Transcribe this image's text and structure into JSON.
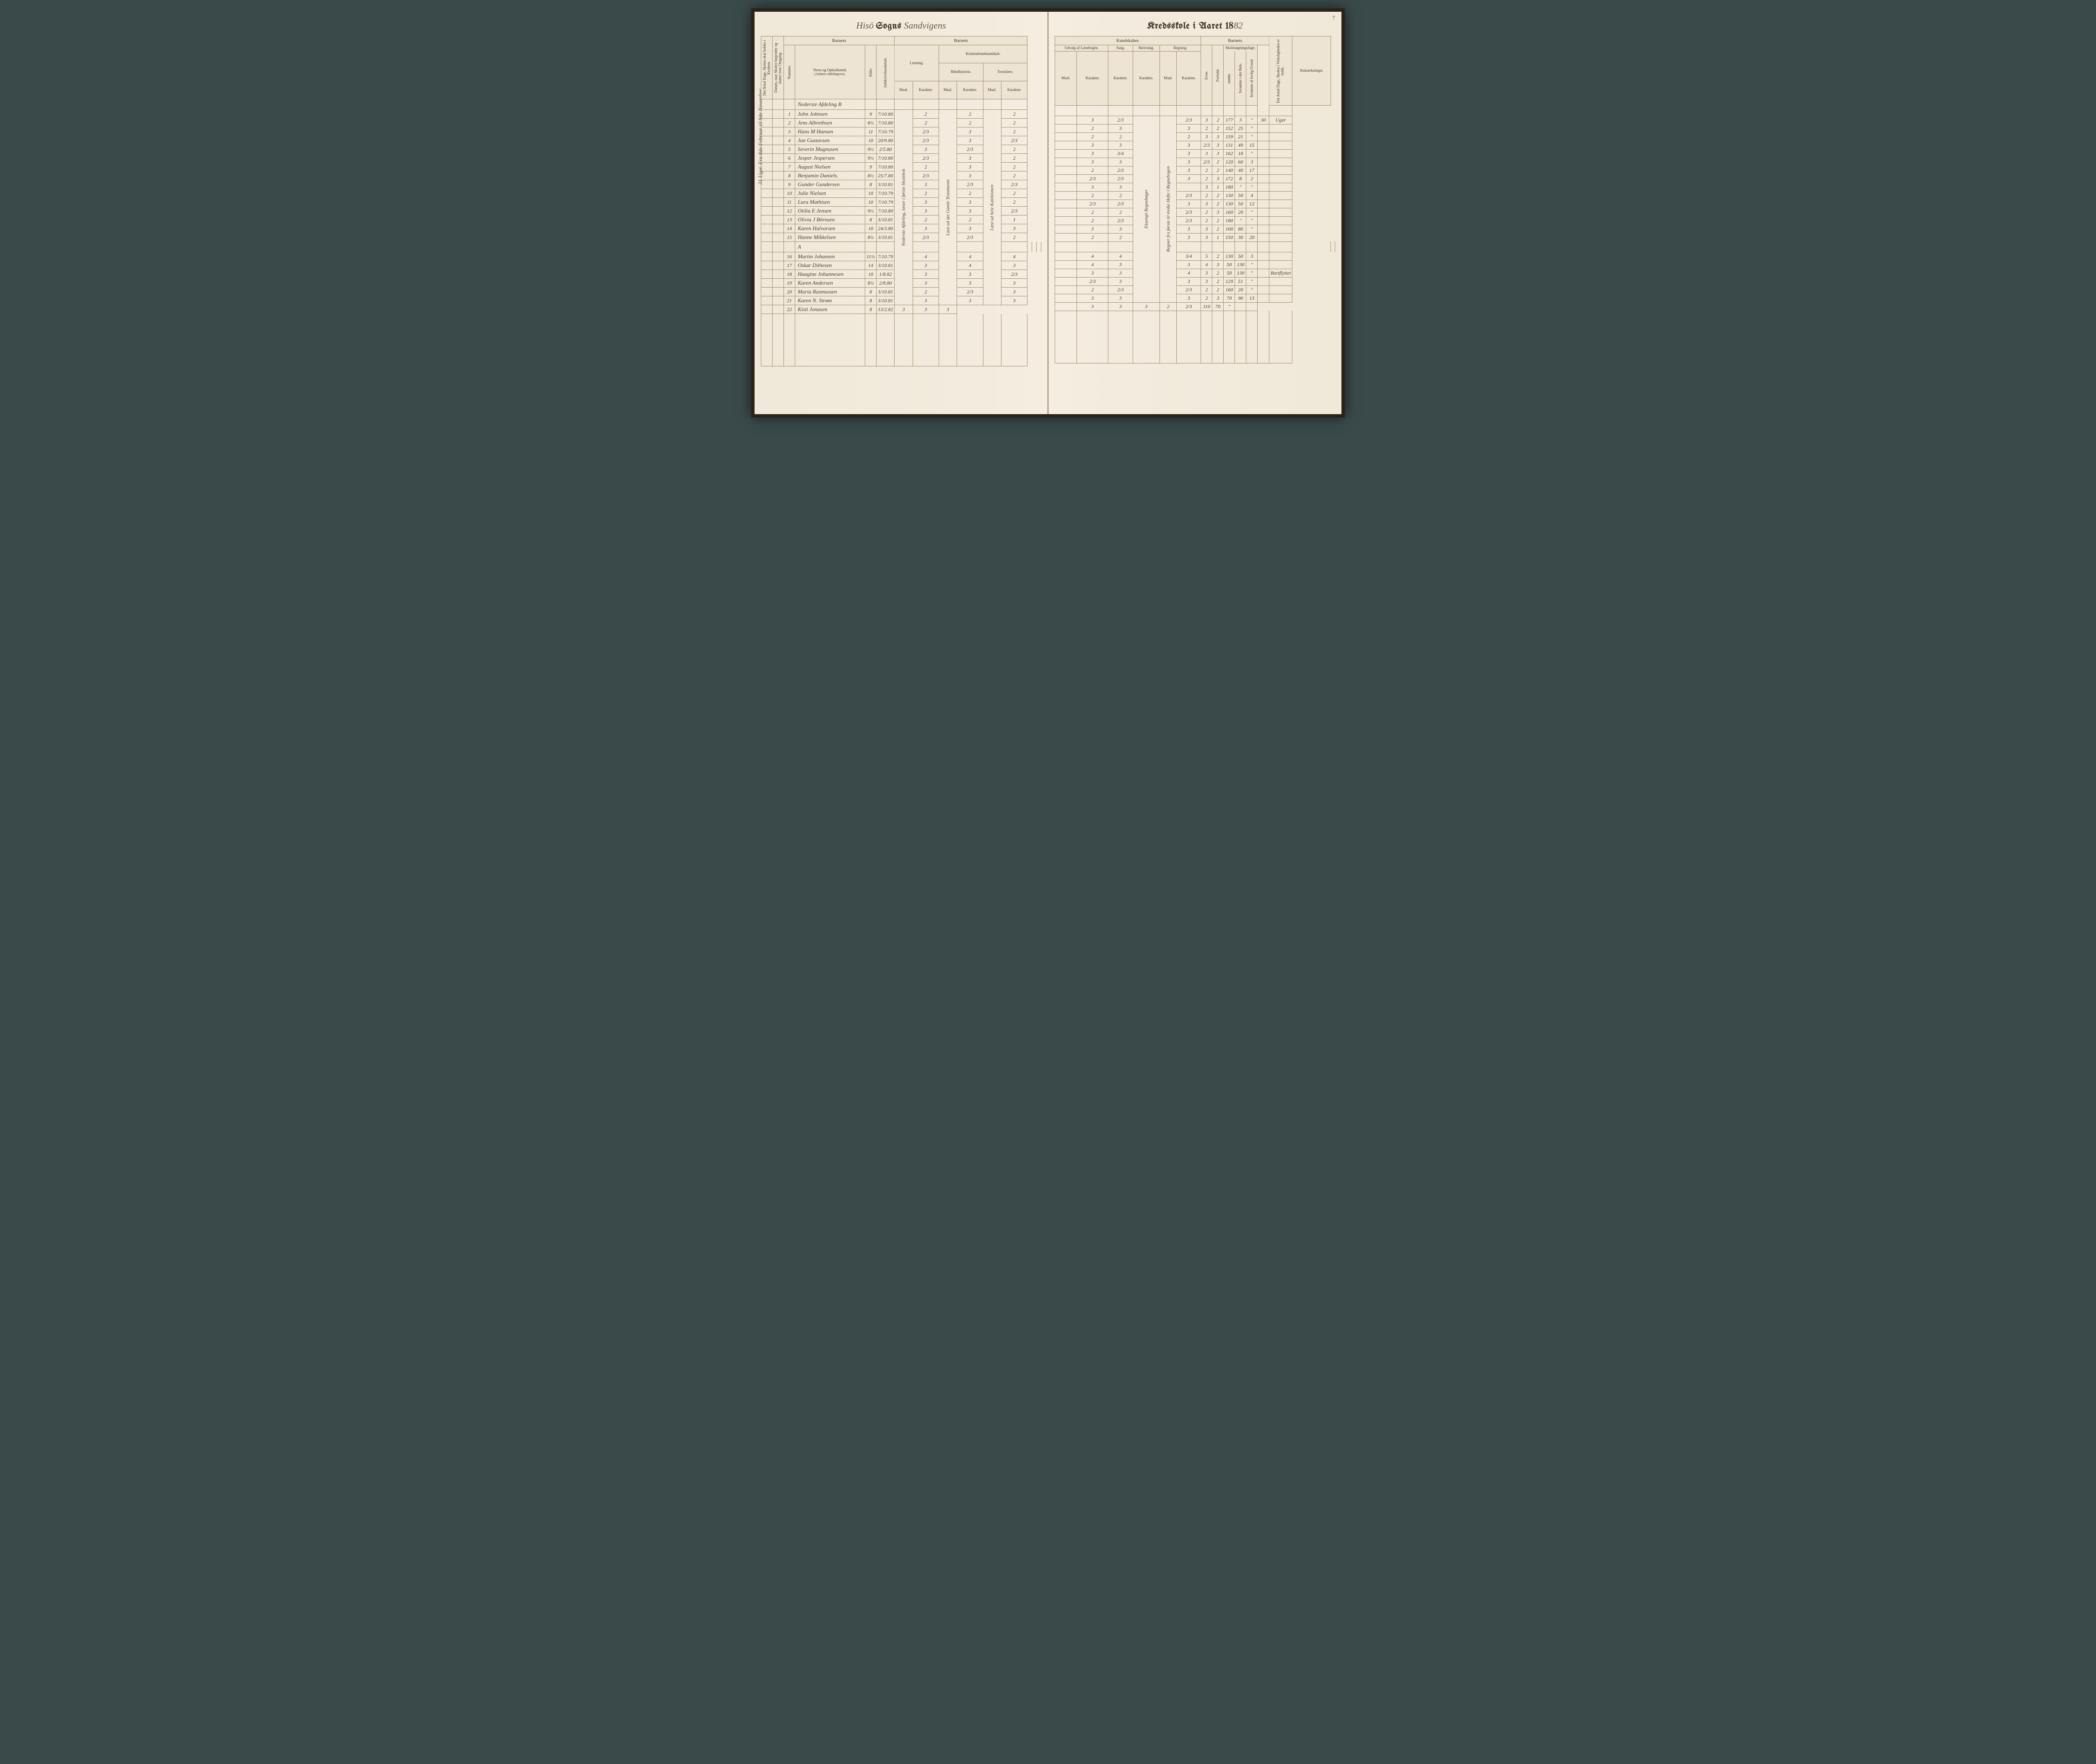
{
  "parish": "Hisö",
  "title_left_mid": "Sogns",
  "district": "Sandvigens",
  "title_right": "Kredsskole i Aaret 18",
  "year_suffix": "82",
  "page_no": "7",
  "vertical_margin_note": "31 Uger.   Fra 8de Februar til 9de November.",
  "headers": {
    "barnets": "Barnets",
    "kundskaber": "Kundskaber.",
    "antal_dage": "Det Antal Dage, Skolen skal holdes i Kredsen.",
    "datum": "Datum, naar Skolen begynder og slutter hver Omgang.",
    "nummer": "Nummer.",
    "navn": "Navn og Opholdssted.",
    "navn_sub": "(Anføres afdelingsvis).",
    "alder": "Alder.",
    "indskr": "Indskrivelsesdatum.",
    "laesning": "Læsning.",
    "kristendom": "Kristendomskundskab.",
    "bibel": "Bibelhistorie.",
    "troes": "Troeslære.",
    "maal": "Maal.",
    "karakter": "Karakter.",
    "udvalg": "Udvalg af Læsebogen.",
    "sang": "Sang.",
    "skriv": "Skrivning.",
    "regning": "Regning.",
    "evne": "Evne.",
    "forhold": "Forhold.",
    "skolesog": "Skolesøgningsdage.",
    "modte": "mødte.",
    "fors_hele": "forsømte i det Hele.",
    "fors_lovlig": "forsømte af lovlig Grund.",
    "virk": "Det Antal Dage, Skolen i Virkeligheden er holdt.",
    "anm": "Anmærkninger."
  },
  "section_b": "Nederste Afdeling  B",
  "section_a": "A",
  "laesning_maal_note": "Nederste Afdeling, læser i første Skolebok",
  "bibel_note": "Læst ud det Gamle Testamente",
  "troes_note": "Læst ud hele Katekismen",
  "sang_note": "Eksempl Regnebøger",
  "regning_note": "Regner fra første til tredie Hefte i Regnebogen",
  "rows": [
    {
      "n": "1",
      "name": "John Johnsen",
      "age": "9",
      "ind": "7/10.80",
      "la_m": "",
      "la_k": "2",
      "bi_m": "",
      "bi_k": "2",
      "tr_m": "",
      "tr_k": "2",
      "ud_m": "",
      "ud_k": "3",
      "sa": "2/3",
      "sk": "",
      "re_m": "",
      "re_k": "2/3",
      "ev": "3",
      "fo": "2",
      "mo": "177",
      "fh": "3",
      "fl": "\"",
      "vi": "30",
      "an": "Uger"
    },
    {
      "n": "2",
      "name": "Jens Albrethsen",
      "age": "8½",
      "ind": "7/10.80",
      "la_m": "",
      "la_k": "2",
      "bi_m": "",
      "bi_k": "2",
      "tr_m": "",
      "tr_k": "2",
      "ud_m": "",
      "ud_k": "2",
      "sa": "3",
      "sk": "",
      "re_m": "",
      "re_k": "3",
      "ev": "2",
      "fo": "2",
      "mo": "152",
      "fh": "25",
      "fl": "\"",
      "vi": "",
      "an": ""
    },
    {
      "n": "3",
      "name": "Hans M Hansen",
      "age": "11",
      "ind": "7/10.79",
      "la_m": "",
      "la_k": "2/3",
      "bi_m": "",
      "bi_k": "3",
      "tr_m": "",
      "tr_k": "2",
      "ud_m": "",
      "ud_k": "2",
      "sa": "2",
      "sk": "",
      "re_m": "",
      "re_k": "2",
      "ev": "3",
      "fo": "3",
      "mo": "159",
      "fh": "21",
      "fl": "\"",
      "vi": "",
      "an": ""
    },
    {
      "n": "4",
      "name": "Jan Gustavsen",
      "age": "10",
      "ind": "20/9.80",
      "la_m": "",
      "la_k": "2/3",
      "bi_m": "",
      "bi_k": "3",
      "tr_m": "",
      "tr_k": "2/3",
      "ud_m": "",
      "ud_k": "3",
      "sa": "3",
      "sk": "",
      "re_m": "",
      "re_k": "3",
      "ev": "2/3",
      "fo": "3",
      "mo": "131",
      "fh": "49",
      "fl": "15",
      "vi": "",
      "an": ""
    },
    {
      "n": "5",
      "name": "Severin Magnusen",
      "age": "9½",
      "ind": "2/5.80",
      "la_m": "",
      "la_k": "3",
      "bi_m": "",
      "bi_k": "2/3",
      "tr_m": "",
      "tr_k": "2",
      "ud_m": "",
      "ud_k": "3",
      "sa": "3/4",
      "sk": "",
      "re_m": "",
      "re_k": "3",
      "ev": "3",
      "fo": "3",
      "mo": "162",
      "fh": "18",
      "fl": "\"",
      "vi": "",
      "an": ""
    },
    {
      "n": "6",
      "name": "Jesper Jespersen",
      "age": "9½",
      "ind": "7/10.80",
      "la_m": "",
      "la_k": "2/3",
      "bi_m": "",
      "bi_k": "3",
      "tr_m": "",
      "tr_k": "2",
      "ud_m": "",
      "ud_k": "3",
      "sa": "3",
      "sk": "",
      "re_m": "",
      "re_k": "3",
      "ev": "2/3",
      "fo": "2",
      "mo": "120",
      "fh": "60",
      "fl": "3",
      "vi": "",
      "an": ""
    },
    {
      "n": "7",
      "name": "August Nielsen",
      "age": "9",
      "ind": "7/10.80",
      "la_m": "",
      "la_k": "2",
      "bi_m": "",
      "bi_k": "3",
      "tr_m": "",
      "tr_k": "2",
      "ud_m": "",
      "ud_k": "2",
      "sa": "2/3",
      "sk": "",
      "re_m": "",
      "re_k": "3",
      "ev": "2",
      "fo": "2",
      "mo": "140",
      "fh": "40",
      "fl": "17",
      "vi": "",
      "an": ""
    },
    {
      "n": "8",
      "name": "Benjamin Daniels.",
      "age": "8½",
      "ind": "25/7.80",
      "la_m": "",
      "la_k": "2/3",
      "bi_m": "",
      "bi_k": "3",
      "tr_m": "",
      "tr_k": "2",
      "ud_m": "",
      "ud_k": "2/3",
      "sa": "2/3",
      "sk": "",
      "re_m": "",
      "re_k": "3",
      "ev": "2",
      "fo": "3",
      "mo": "172",
      "fh": "8",
      "fl": "2",
      "vi": "",
      "an": ""
    },
    {
      "n": "9",
      "name": "Gunder Gundersen",
      "age": "8",
      "ind": "3/10.81",
      "la_m": "",
      "la_k": "3",
      "bi_m": "",
      "bi_k": "2/3",
      "tr_m": "",
      "tr_k": "2/3",
      "ud_m": "",
      "ud_k": "3",
      "sa": "3",
      "sk": "",
      "re_m": "",
      "re_k": "",
      "ev": "3",
      "fo": "1",
      "mo": "180",
      "fh": "\"",
      "fl": "\"",
      "vi": "",
      "an": ""
    },
    {
      "n": "10",
      "name": "Julie Nielsen",
      "age": "10",
      "ind": "7/10.79",
      "la_m": "",
      "la_k": "2",
      "bi_m": "",
      "bi_k": "2",
      "tr_m": "",
      "tr_k": "2",
      "ud_m": "",
      "ud_k": "2",
      "sa": "2",
      "sk": "",
      "re_m": "",
      "re_k": "2/3",
      "ev": "2",
      "fo": "2",
      "mo": "130",
      "fh": "50",
      "fl": "4",
      "vi": "",
      "an": ""
    },
    {
      "n": "11",
      "name": "Lura Mathisen",
      "age": "10",
      "ind": "7/10.79",
      "la_m": "",
      "la_k": "3",
      "bi_m": "",
      "bi_k": "3",
      "tr_m": "",
      "tr_k": "2",
      "ud_m": "",
      "ud_k": "2/3",
      "sa": "2/3",
      "sk": "",
      "re_m": "",
      "re_k": "3",
      "ev": "3",
      "fo": "2",
      "mo": "130",
      "fh": "50",
      "fl": "12",
      "vi": "",
      "an": ""
    },
    {
      "n": "12",
      "name": "Otilia E Jensen",
      "age": "9½",
      "ind": "7/10.80",
      "la_m": "",
      "la_k": "3",
      "bi_m": "",
      "bi_k": "3",
      "tr_m": "",
      "tr_k": "2/3",
      "ud_m": "",
      "ud_k": "2",
      "sa": "2",
      "sk": "",
      "re_m": "",
      "re_k": "2/3",
      "ev": "2",
      "fo": "3",
      "mo": "160",
      "fh": "20",
      "fl": "\"",
      "vi": "",
      "an": ""
    },
    {
      "n": "13",
      "name": "Olivia J Börnsen",
      "age": "8",
      "ind": "3/10.81",
      "la_m": "",
      "la_k": "2",
      "bi_m": "",
      "bi_k": "2",
      "tr_m": "",
      "tr_k": "1",
      "ud_m": "",
      "ud_k": "2",
      "sa": "2/3",
      "sk": "",
      "re_m": "",
      "re_k": "2/3",
      "ev": "2",
      "fo": "2",
      "mo": "180",
      "fh": "\"",
      "fl": "\"",
      "vi": "",
      "an": ""
    },
    {
      "n": "14",
      "name": "Karen Halvorsen",
      "age": "10",
      "ind": "24/3.80",
      "la_m": "",
      "la_k": "3",
      "bi_m": "",
      "bi_k": "3",
      "tr_m": "",
      "tr_k": "3",
      "ud_m": "",
      "ud_k": "3",
      "sa": "3",
      "sk": "",
      "re_m": "",
      "re_k": "3",
      "ev": "3",
      "fo": "2",
      "mo": "100",
      "fh": "80",
      "fl": "\"",
      "vi": "",
      "an": ""
    },
    {
      "n": "15",
      "name": "Hanne Mikkelsen",
      "age": "8½",
      "ind": "3/10.81",
      "la_m": "",
      "la_k": "2/3",
      "bi_m": "",
      "bi_k": "2/3",
      "tr_m": "",
      "tr_k": "2",
      "ud_m": "",
      "ud_k": "2",
      "sa": "2",
      "sk": "",
      "re_m": "",
      "re_k": "3",
      "ev": "3",
      "fo": "1",
      "mo": "150",
      "fh": "30",
      "fl": "20",
      "vi": "",
      "an": ""
    },
    {
      "n": "16",
      "name": "Martin Johansen",
      "age": "11½",
      "ind": "7/10.79",
      "la_m": "",
      "la_k": "4",
      "bi_m": "",
      "bi_k": "4",
      "tr_m": "",
      "tr_k": "4",
      "ud_m": "",
      "ud_k": "4",
      "sa": "4",
      "sk": "",
      "re_m": "",
      "re_k": "3/4",
      "ev": "5",
      "fo": "2",
      "mo": "130",
      "fh": "50",
      "fl": "3",
      "vi": "",
      "an": ""
    },
    {
      "n": "17",
      "name": "Oskar Dithesen",
      "age": "14",
      "ind": "3/10.81",
      "la_m": "",
      "la_k": "3",
      "bi_m": "",
      "bi_k": "4",
      "tr_m": "",
      "tr_k": "3",
      "ud_m": "",
      "ud_k": "4",
      "sa": "3",
      "sk": "",
      "re_m": "",
      "re_k": "3",
      "ev": "4",
      "fo": "3",
      "mo": "50",
      "fh": "130",
      "fl": "\"",
      "vi": "",
      "an": ""
    },
    {
      "n": "18",
      "name": "Haagine Johannesen",
      "age": "10",
      "ind": "1/8.82",
      "la_m": "",
      "la_k": "3",
      "bi_m": "",
      "bi_k": "3",
      "tr_m": "",
      "tr_k": "2/3",
      "ud_m": "",
      "ud_k": "3",
      "sa": "3",
      "sk": "",
      "re_m": "",
      "re_k": "4",
      "ev": "3",
      "fo": "2",
      "mo": "50",
      "fh": "130",
      "fl": "\"",
      "vi": "",
      "an": "Bortflyttet"
    },
    {
      "n": "19",
      "name": "Karen Andersen",
      "age": "8½",
      "ind": "2/8.80",
      "la_m": "",
      "la_k": "3",
      "bi_m": "",
      "bi_k": "3",
      "tr_m": "",
      "tr_k": "3",
      "ud_m": "",
      "ud_k": "2/3",
      "sa": "3",
      "sk": "",
      "re_m": "",
      "re_k": "3",
      "ev": "3",
      "fo": "2",
      "mo": "129",
      "fh": "51",
      "fl": "\"",
      "vi": "",
      "an": ""
    },
    {
      "n": "20",
      "name": "Maria Rasmussen",
      "age": "8",
      "ind": "3/10.81",
      "la_m": "",
      "la_k": "2",
      "bi_m": "",
      "bi_k": "2/3",
      "tr_m": "",
      "tr_k": "3",
      "ud_m": "",
      "ud_k": "2",
      "sa": "2/3",
      "sk": "",
      "re_m": "",
      "re_k": "2/3",
      "ev": "2",
      "fo": "2",
      "mo": "160",
      "fh": "20",
      "fl": "\"",
      "vi": "",
      "an": ""
    },
    {
      "n": "21",
      "name": "Karen N. Strøm",
      "age": "8",
      "ind": "3/10.81",
      "la_m": "",
      "la_k": "3",
      "bi_m": "",
      "bi_k": "3",
      "tr_m": "",
      "tr_k": "3",
      "ud_m": "",
      "ud_k": "3",
      "sa": "3",
      "sk": "",
      "re_m": "",
      "re_k": "3",
      "ev": "2",
      "fo": "3",
      "mo": "70",
      "fh": "90",
      "fl": "13",
      "vi": "",
      "an": ""
    },
    {
      "n": "22",
      "name": "Kisti Jonasen",
      "age": "8",
      "ind": "13/2.82",
      "la_m": "",
      "la_k": "3",
      "bi_m": "",
      "bi_k": "3",
      "tr_m": "",
      "tr_k": "3",
      "ud_m": "",
      "ud_k": "3",
      "sa": "3",
      "sk": "",
      "re_m": "",
      "re_k": "3",
      "ev": "2",
      "fo": "2/3",
      "mo": "110",
      "fh": "70",
      "fl": "\"",
      "vi": "",
      "an": ""
    }
  ]
}
